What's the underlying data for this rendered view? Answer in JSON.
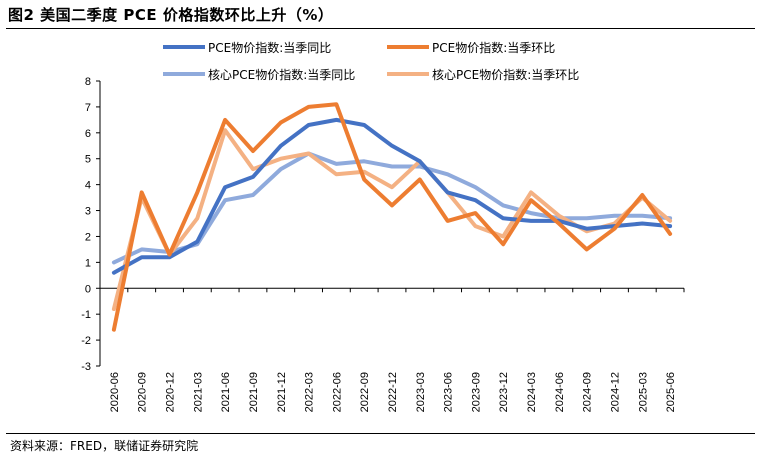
{
  "figure": {
    "title": "图2  美国二季度 PCE 价格指数环比上升（%）",
    "source": "资料来源：FRED，联储证券研究院"
  },
  "chart_data": {
    "type": "line",
    "title": "",
    "xlabel": "",
    "ylabel": "",
    "ylim": [
      -3,
      8
    ],
    "yticks": [
      "-3",
      "-2",
      "-1",
      "0",
      "1",
      "2",
      "3",
      "4",
      "5",
      "6",
      "7",
      "8"
    ],
    "grid": false,
    "legend_position": "top",
    "categories": [
      "2020-06",
      "2020-09",
      "2020-12",
      "2021-03",
      "2021-06",
      "2021-09",
      "2021-12",
      "2022-03",
      "2022-06",
      "2022-09",
      "2022-12",
      "2023-03",
      "2023-06",
      "2023-09",
      "2023-12",
      "2024-03",
      "2024-06",
      "2024-09",
      "2024-12",
      "2025-03",
      "2025-06"
    ],
    "series": [
      {
        "name": "PCE物价指数:当季同比",
        "color": "#4472C4",
        "stroke": 4,
        "values": [
          0.6,
          1.2,
          1.2,
          1.8,
          3.9,
          4.3,
          5.5,
          6.3,
          6.5,
          6.3,
          5.5,
          4.9,
          3.7,
          3.4,
          2.7,
          2.6,
          2.6,
          2.3,
          2.4,
          2.5,
          2.4
        ]
      },
      {
        "name": "PCE物价指数:当季环比",
        "color": "#ED7D31",
        "stroke": 4,
        "values": [
          -1.6,
          3.7,
          1.3,
          3.7,
          6.5,
          5.3,
          6.4,
          7.0,
          7.1,
          4.2,
          3.2,
          4.2,
          2.6,
          2.9,
          1.7,
          3.4,
          2.5,
          1.5,
          2.3,
          3.6,
          2.1
        ]
      },
      {
        "name": "核心PCE物价指数:当季同比",
        "color": "#8FAADC",
        "stroke": 4,
        "values": [
          1.0,
          1.5,
          1.4,
          1.7,
          3.4,
          3.6,
          4.6,
          5.2,
          4.8,
          4.9,
          4.7,
          4.7,
          4.4,
          3.9,
          3.2,
          2.9,
          2.7,
          2.7,
          2.8,
          2.8,
          2.7
        ]
      },
      {
        "name": "核心PCE物价指数:当季环比",
        "color": "#F4B183",
        "stroke": 4,
        "values": [
          -0.8,
          3.5,
          1.3,
          2.7,
          6.1,
          4.6,
          5.0,
          5.2,
          4.4,
          4.5,
          3.9,
          4.9,
          3.7,
          2.4,
          2.0,
          3.7,
          2.8,
          2.2,
          2.5,
          3.5,
          2.6
        ]
      }
    ]
  }
}
